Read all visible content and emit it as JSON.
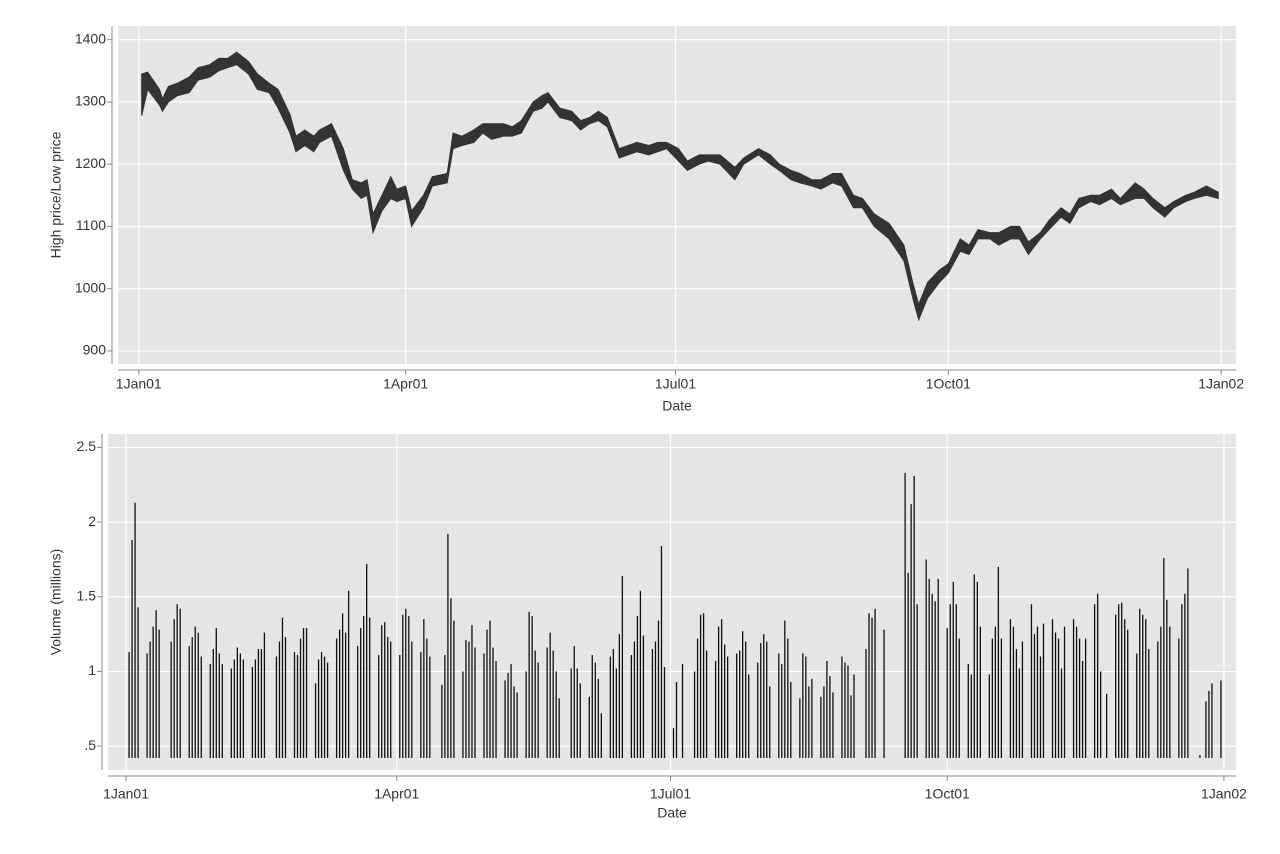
{
  "chart_data": [
    {
      "type": "rangearea",
      "xlabel": "Date",
      "ylabel": "High price/Low price",
      "x": [
        "2001-01-02",
        "2001-01-04",
        "2001-01-08",
        "2001-01-09",
        "2001-01-11",
        "2001-01-14",
        "2001-01-18",
        "2001-01-21",
        "2001-01-25",
        "2001-01-28",
        "2001-01-31",
        "2001-02-03",
        "2001-02-07",
        "2001-02-10",
        "2001-02-14",
        "2001-02-17",
        "2001-02-21",
        "2001-02-23",
        "2001-02-26",
        "2001-03-01",
        "2001-03-03",
        "2001-03-07",
        "2001-03-11",
        "2001-03-14",
        "2001-03-17",
        "2001-03-19",
        "2001-03-21",
        "2001-03-24",
        "2001-03-27",
        "2001-03-29",
        "2001-04-01",
        "2001-04-03",
        "2001-04-07",
        "2001-04-10",
        "2001-04-15",
        "2001-04-17",
        "2001-04-20",
        "2001-04-24",
        "2001-04-27",
        "2001-04-30",
        "2001-05-04",
        "2001-05-07",
        "2001-05-10",
        "2001-05-14",
        "2001-05-17",
        "2001-05-19",
        "2001-05-23",
        "2001-05-27",
        "2001-05-30",
        "2001-06-02",
        "2001-06-05",
        "2001-06-08",
        "2001-06-12",
        "2001-06-15",
        "2001-06-18",
        "2001-06-22",
        "2001-06-25",
        "2001-06-28",
        "2001-07-02",
        "2001-07-05",
        "2001-07-09",
        "2001-07-12",
        "2001-07-16",
        "2001-07-21",
        "2001-07-24",
        "2001-07-29",
        "2001-08-02",
        "2001-08-05",
        "2001-08-09",
        "2001-08-12",
        "2001-08-16",
        "2001-08-19",
        "2001-08-23",
        "2001-08-26",
        "2001-08-30",
        "2001-09-02",
        "2001-09-06",
        "2001-09-11",
        "2001-09-16",
        "2001-09-19",
        "2001-09-21",
        "2001-09-24",
        "2001-09-28",
        "2001-10-01",
        "2001-10-05",
        "2001-10-08",
        "2001-10-11",
        "2001-10-15",
        "2001-10-18",
        "2001-10-22",
        "2001-10-25",
        "2001-10-28",
        "2001-11-01",
        "2001-11-04",
        "2001-11-08",
        "2001-11-11",
        "2001-11-14",
        "2001-11-18",
        "2001-11-21",
        "2001-11-25",
        "2001-11-28",
        "2001-12-03",
        "2001-12-06",
        "2001-12-09",
        "2001-12-13",
        "2001-12-16",
        "2001-12-20",
        "2001-12-23",
        "2001-12-27",
        "2001-12-31"
      ],
      "low": [
        1278,
        1320,
        1295,
        1285,
        1300,
        1310,
        1315,
        1335,
        1340,
        1350,
        1355,
        1360,
        1345,
        1320,
        1315,
        1290,
        1250,
        1220,
        1230,
        1220,
        1235,
        1245,
        1190,
        1160,
        1145,
        1150,
        1090,
        1125,
        1145,
        1140,
        1145,
        1100,
        1130,
        1165,
        1170,
        1225,
        1230,
        1235,
        1250,
        1240,
        1245,
        1245,
        1250,
        1285,
        1290,
        1300,
        1275,
        1270,
        1255,
        1265,
        1270,
        1260,
        1210,
        1215,
        1220,
        1215,
        1220,
        1225,
        1205,
        1190,
        1200,
        1205,
        1200,
        1175,
        1200,
        1215,
        1200,
        1190,
        1175,
        1170,
        1165,
        1160,
        1170,
        1165,
        1130,
        1130,
        1100,
        1080,
        1045,
        985,
        950,
        985,
        1010,
        1025,
        1060,
        1055,
        1080,
        1080,
        1070,
        1080,
        1080,
        1055,
        1080,
        1095,
        1115,
        1105,
        1130,
        1140,
        1135,
        1145,
        1135,
        1145,
        1145,
        1130,
        1115,
        1130,
        1140,
        1145,
        1150,
        1145
      ],
      "high": [
        1345,
        1348,
        1320,
        1305,
        1325,
        1330,
        1340,
        1355,
        1360,
        1370,
        1370,
        1380,
        1365,
        1345,
        1330,
        1320,
        1280,
        1245,
        1255,
        1245,
        1255,
        1265,
        1225,
        1175,
        1170,
        1175,
        1120,
        1150,
        1180,
        1160,
        1165,
        1125,
        1150,
        1180,
        1185,
        1250,
        1245,
        1255,
        1265,
        1265,
        1265,
        1260,
        1270,
        1300,
        1310,
        1315,
        1290,
        1285,
        1270,
        1275,
        1285,
        1275,
        1225,
        1230,
        1235,
        1230,
        1235,
        1235,
        1225,
        1205,
        1215,
        1215,
        1215,
        1195,
        1210,
        1225,
        1215,
        1200,
        1190,
        1185,
        1175,
        1175,
        1185,
        1185,
        1150,
        1145,
        1120,
        1105,
        1070,
        1010,
        975,
        1010,
        1030,
        1040,
        1080,
        1070,
        1095,
        1090,
        1090,
        1100,
        1100,
        1075,
        1090,
        1110,
        1130,
        1120,
        1145,
        1150,
        1150,
        1160,
        1145,
        1170,
        1160,
        1145,
        1130,
        1140,
        1150,
        1155,
        1165,
        1155
      ],
      "color": "#333333",
      "xlim": [
        "2000-12-25",
        "2002-01-06"
      ],
      "xticks": [
        {
          "value": "2001-01-01",
          "label": "1Jan01"
        },
        {
          "value": "2001-04-01",
          "label": "1Apr01"
        },
        {
          "value": "2001-07-01",
          "label": "1Jul01"
        },
        {
          "value": "2001-10-01",
          "label": "1Oct01"
        },
        {
          "value": "2002-01-01",
          "label": "1Jan02"
        }
      ],
      "ylim": [
        879,
        1422
      ],
      "yticks": [
        900,
        1000,
        1100,
        1200,
        1300,
        1400
      ],
      "grid": true
    },
    {
      "type": "spike",
      "xlabel": "Date",
      "ylabel": "Volume (millions)",
      "x": [
        "2001-01-02",
        "2001-01-03",
        "2001-01-04",
        "2001-01-05",
        "2001-01-08",
        "2001-01-09",
        "2001-01-10",
        "2001-01-11",
        "2001-01-12",
        "2001-01-16",
        "2001-01-17",
        "2001-01-18",
        "2001-01-19",
        "2001-01-22",
        "2001-01-23",
        "2001-01-24",
        "2001-01-25",
        "2001-01-26",
        "2001-01-29",
        "2001-01-30",
        "2001-01-31",
        "2001-02-01",
        "2001-02-02",
        "2001-02-05",
        "2001-02-06",
        "2001-02-07",
        "2001-02-08",
        "2001-02-09",
        "2001-02-12",
        "2001-02-13",
        "2001-02-14",
        "2001-02-15",
        "2001-02-16",
        "2001-02-20",
        "2001-02-21",
        "2001-02-22",
        "2001-02-23",
        "2001-02-26",
        "2001-02-27",
        "2001-02-28",
        "2001-03-01",
        "2001-03-02",
        "2001-03-05",
        "2001-03-06",
        "2001-03-07",
        "2001-03-08",
        "2001-03-09",
        "2001-03-12",
        "2001-03-13",
        "2001-03-14",
        "2001-03-15",
        "2001-03-16",
        "2001-03-19",
        "2001-03-20",
        "2001-03-21",
        "2001-03-22",
        "2001-03-23",
        "2001-03-26",
        "2001-03-27",
        "2001-03-28",
        "2001-03-29",
        "2001-03-30",
        "2001-04-02",
        "2001-04-03",
        "2001-04-04",
        "2001-04-05",
        "2001-04-06",
        "2001-04-09",
        "2001-04-10",
        "2001-04-11",
        "2001-04-12",
        "2001-04-16",
        "2001-04-17",
        "2001-04-18",
        "2001-04-19",
        "2001-04-20",
        "2001-04-23",
        "2001-04-24",
        "2001-04-25",
        "2001-04-26",
        "2001-04-27",
        "2001-04-30",
        "2001-05-01",
        "2001-05-02",
        "2001-05-03",
        "2001-05-04",
        "2001-05-07",
        "2001-05-08",
        "2001-05-09",
        "2001-05-10",
        "2001-05-11",
        "2001-05-14",
        "2001-05-15",
        "2001-05-16",
        "2001-05-17",
        "2001-05-18",
        "2001-05-21",
        "2001-05-22",
        "2001-05-23",
        "2001-05-24",
        "2001-05-25",
        "2001-05-29",
        "2001-05-30",
        "2001-05-31",
        "2001-06-01",
        "2001-06-04",
        "2001-06-05",
        "2001-06-06",
        "2001-06-07",
        "2001-06-08",
        "2001-06-11",
        "2001-06-12",
        "2001-06-13",
        "2001-06-14",
        "2001-06-15",
        "2001-06-18",
        "2001-06-19",
        "2001-06-20",
        "2001-06-21",
        "2001-06-22",
        "2001-06-25",
        "2001-06-26",
        "2001-06-27",
        "2001-06-28",
        "2001-06-29",
        "2001-07-02",
        "2001-07-03",
        "2001-07-05",
        "2001-07-09",
        "2001-07-10",
        "2001-07-11",
        "2001-07-12",
        "2001-07-13",
        "2001-07-16",
        "2001-07-17",
        "2001-07-18",
        "2001-07-19",
        "2001-07-20",
        "2001-07-23",
        "2001-07-24",
        "2001-07-25",
        "2001-07-26",
        "2001-07-27",
        "2001-07-30",
        "2001-07-31",
        "2001-08-01",
        "2001-08-02",
        "2001-08-03",
        "2001-08-06",
        "2001-08-07",
        "2001-08-08",
        "2001-08-09",
        "2001-08-10",
        "2001-08-13",
        "2001-08-14",
        "2001-08-15",
        "2001-08-16",
        "2001-08-17",
        "2001-08-20",
        "2001-08-21",
        "2001-08-22",
        "2001-08-23",
        "2001-08-24",
        "2001-08-27",
        "2001-08-28",
        "2001-08-29",
        "2001-08-30",
        "2001-08-31",
        "2001-09-04",
        "2001-09-05",
        "2001-09-06",
        "2001-09-07",
        "2001-09-10",
        "2001-09-17",
        "2001-09-18",
        "2001-09-19",
        "2001-09-20",
        "2001-09-21",
        "2001-09-24",
        "2001-09-25",
        "2001-09-26",
        "2001-09-27",
        "2001-09-28",
        "2001-10-01",
        "2001-10-02",
        "2001-10-03",
        "2001-10-04",
        "2001-10-05",
        "2001-10-08",
        "2001-10-09",
        "2001-10-10",
        "2001-10-11",
        "2001-10-12",
        "2001-10-15",
        "2001-10-16",
        "2001-10-17",
        "2001-10-18",
        "2001-10-19",
        "2001-10-22",
        "2001-10-23",
        "2001-10-24",
        "2001-10-25",
        "2001-10-26",
        "2001-10-29",
        "2001-10-30",
        "2001-10-31",
        "2001-11-01",
        "2001-11-02",
        "2001-11-05",
        "2001-11-06",
        "2001-11-07",
        "2001-11-08",
        "2001-11-09",
        "2001-11-12",
        "2001-11-13",
        "2001-11-14",
        "2001-11-15",
        "2001-11-16",
        "2001-11-19",
        "2001-11-20",
        "2001-11-21",
        "2001-11-23",
        "2001-11-26",
        "2001-11-27",
        "2001-11-28",
        "2001-11-29",
        "2001-11-30",
        "2001-12-03",
        "2001-12-04",
        "2001-12-05",
        "2001-12-06",
        "2001-12-07",
        "2001-12-10",
        "2001-12-11",
        "2001-12-12",
        "2001-12-13",
        "2001-12-14",
        "2001-12-17",
        "2001-12-18",
        "2001-12-19",
        "2001-12-20",
        "2001-12-24",
        "2001-12-26",
        "2001-12-27",
        "2001-12-28",
        "2001-12-31"
      ],
      "values": [
        1.13,
        1.88,
        2.13,
        1.43,
        1.12,
        1.2,
        1.3,
        1.41,
        1.28,
        1.2,
        1.35,
        1.45,
        1.42,
        1.17,
        1.23,
        1.3,
        1.26,
        1.1,
        1.05,
        1.15,
        1.29,
        1.12,
        1.05,
        1.02,
        1.08,
        1.16,
        1.12,
        1.08,
        1.03,
        1.08,
        1.15,
        1.15,
        1.26,
        1.1,
        1.2,
        1.36,
        1.23,
        1.13,
        1.11,
        1.22,
        1.29,
        1.29,
        0.92,
        1.08,
        1.13,
        1.1,
        1.06,
        1.22,
        1.28,
        1.39,
        1.26,
        1.54,
        1.17,
        1.29,
        1.37,
        1.72,
        1.36,
        1.11,
        1.31,
        1.33,
        1.23,
        1.2,
        1.11,
        1.38,
        1.42,
        1.37,
        1.2,
        1.13,
        1.35,
        1.22,
        1.1,
        0.91,
        1.11,
        1.92,
        1.49,
        1.34,
        1.0,
        1.21,
        1.2,
        1.31,
        1.16,
        1.12,
        1.28,
        1.34,
        1.16,
        1.07,
        0.94,
        0.99,
        1.05,
        0.9,
        0.86,
        1.0,
        1.4,
        1.37,
        1.14,
        1.06,
        1.16,
        1.26,
        1.14,
        1.0,
        0.82,
        1.02,
        1.17,
        1.02,
        0.92,
        0.83,
        1.11,
        1.06,
        0.95,
        0.72,
        1.1,
        1.15,
        1.02,
        1.25,
        1.64,
        1.11,
        1.2,
        1.37,
        1.54,
        1.24,
        1.15,
        1.2,
        1.34,
        1.84,
        1.03,
        0.62,
        0.93,
        1.05,
        1.0,
        1.22,
        1.38,
        1.39,
        1.14,
        1.07,
        1.3,
        1.35,
        1.18,
        1.1,
        1.12,
        1.14,
        1.27,
        1.2,
        0.98,
        1.06,
        1.19,
        1.25,
        1.2,
        0.9,
        1.12,
        1.05,
        1.34,
        1.22,
        0.93,
        0.82,
        1.12,
        1.1,
        0.9,
        0.95,
        0.83,
        0.9,
        1.07,
        0.97,
        0.86,
        1.1,
        1.06,
        1.04,
        0.84,
        0.98,
        1.15,
        1.39,
        1.36,
        1.42,
        1.28,
        2.33,
        1.66,
        2.12,
        2.31,
        1.45,
        1.75,
        1.62,
        1.52,
        1.47,
        1.62,
        1.29,
        1.45,
        1.6,
        1.45,
        1.22,
        1.05,
        0.98,
        1.65,
        1.6,
        1.3,
        0.98,
        1.22,
        1.3,
        1.7,
        1.22,
        1.35,
        1.3,
        1.15,
        1.02,
        1.2,
        1.45,
        1.25,
        1.3,
        1.1,
        1.32,
        1.35,
        1.26,
        1.22,
        1.02,
        1.3,
        1.35,
        1.3,
        1.22,
        1.07,
        1.22,
        1.45,
        1.52,
        1.0,
        0.85,
        1.38,
        1.45,
        1.46,
        1.35,
        1.28,
        1.12,
        1.42,
        1.38,
        1.35,
        1.15,
        1.2,
        1.3,
        1.76,
        1.48,
        1.3,
        1.22,
        1.45,
        1.52,
        1.69,
        0.44,
        0.8,
        0.87,
        0.92,
        0.94
      ],
      "color": "#111111",
      "xlim": [
        "2000-12-26",
        "2002-01-05"
      ],
      "xticks": [
        {
          "value": "2001-01-01",
          "label": "1Jan01"
        },
        {
          "value": "2001-04-01",
          "label": "1Apr01"
        },
        {
          "value": "2001-07-01",
          "label": "1Jul01"
        },
        {
          "value": "2001-10-01",
          "label": "1Oct01"
        },
        {
          "value": "2002-01-01",
          "label": "1Jan02"
        }
      ],
      "ylim": [
        0.34,
        2.59
      ],
      "yticks": [
        {
          "value": 0.5,
          "label": ".5"
        },
        1,
        1.5,
        2,
        2.5
      ],
      "grid": true
    }
  ]
}
